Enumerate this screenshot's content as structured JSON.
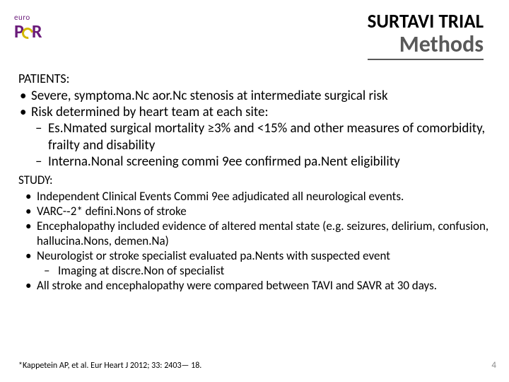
{
  "logo": {
    "top": "euro",
    "main": "PCR"
  },
  "header": {
    "trial": "SURTAVI TRIAL",
    "section": "Methods"
  },
  "patients_label": "PATIENTS:",
  "patients_bullets": {
    "b1": "Severe, symptoma.Nc aor.Nc stenosis at intermediate surgical risk",
    "b2": "Risk determined by heart team at each site:",
    "b2_sub1": "Es.Nmated surgical mortality ≥3% and <15% and other measures of comorbidity, frailty and disability",
    "b2_sub2": "Interna.Nonal screening commi 9ee confirmed pa.Nent eligibility"
  },
  "study_label": "STUDY:",
  "study_bullets": {
    "s1": "Independent Clinical Events Commi 9ee adjudicated all neurological events.",
    "s2": "VARC-­‐2* defini.Nons of stroke",
    "s3": "Encephalopathy included evidence of altered mental state (e.g. seizures, delirium, confusion, hallucina.Nons, demen.Na)",
    "s4": "Neurologist or stroke specialist evaluated pa.Nents with suspected event",
    "s4_sub1": "Imaging at discre.Non of specialist",
    "s5": "All stroke and encephalopathy were compared between TAVI and SAVR at 30 days."
  },
  "footnote": "*Kappetein AP, et al. Eur Heart J 2012; 33: 2403— 18.",
  "page": "4",
  "colors": {
    "heading_gray": "#595959",
    "logo_purple": "#6a1b7a",
    "logo_accent": "#d4b800",
    "text": "#000000",
    "pagenum": "#8a8a8a",
    "bg": "#ffffff"
  }
}
